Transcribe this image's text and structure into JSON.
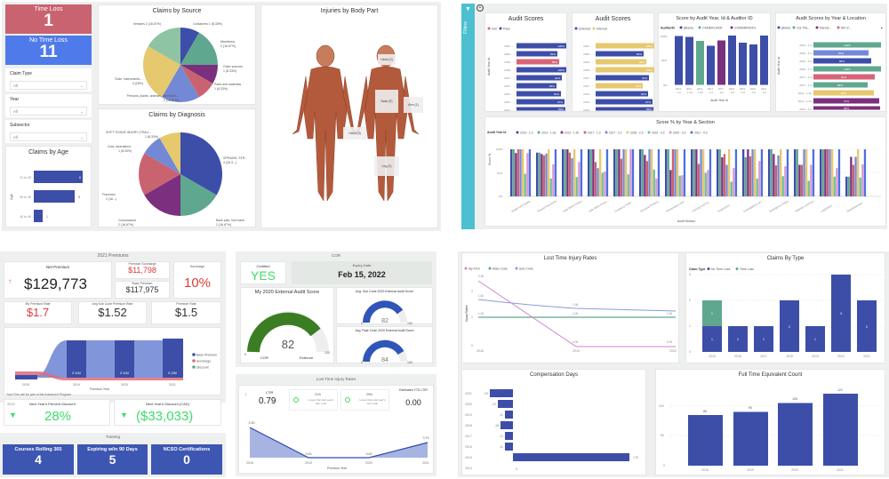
{
  "q1": {
    "time_loss": {
      "label": "Time Loss",
      "value": "1"
    },
    "no_time_loss": {
      "label": "No Time Loss",
      "value": "11"
    },
    "slicers": [
      {
        "label": "Claim Type",
        "value": "All"
      },
      {
        "label": "Year",
        "value": "All"
      },
      {
        "label": "Subsector",
        "value": "All"
      }
    ],
    "claims_by_age": {
      "title": "Claims by Age",
      "axis": "Age"
    },
    "claims_by_source": {
      "title": "Claims by Source"
    },
    "claims_by_diagnosis": {
      "title": "Claims by Diagnosis"
    },
    "body": {
      "title": "Injuries by Body Part",
      "labels": [
        "Head (2)",
        "Back (5)",
        "Arm (1)",
        "Hand (3)",
        "Leg (3)"
      ]
    }
  },
  "q2": {
    "filters_label": "Filters",
    "audit_scores_1": {
      "title": "Audit Scores",
      "legend": [
        "Fail",
        "Pass"
      ],
      "ylabel": "Audit Year Id"
    },
    "audit_scores_2": {
      "title": "Audit Scores",
      "legend": [
        "External",
        "Internal"
      ]
    },
    "score_by_auditor": {
      "title": "Score by Audit Year, Id & Auditor ID",
      "legend_title": "AuditorID",
      "legend": [
        "(Blank)",
        "CAMERL0000",
        "GOMANRO001"
      ],
      "xlabel": "Audit Year Id"
    },
    "scores_by_location": {
      "title": "Audit Scores by Year & Location",
      "legend": [
        "(Blank)",
        "123 This...",
        "Marsde...",
        "RM of ..."
      ],
      "ylabel": "Audit Year Id"
    },
    "score_by_section": {
      "title": "Score % by Year & Section",
      "legend_title": "Audit Year Id",
      "ylabel": "Score %",
      "xlabel": "Audit Section"
    }
  },
  "q3": {
    "premiums": {
      "title": "2021 Premiums",
      "net_premium": {
        "label": "Net Premium",
        "value": "$129,773"
      },
      "premium_surcharge": {
        "label": "Premium Surcharge",
        "value": "$11,798"
      },
      "base_premium": {
        "label": "Base Premium",
        "value": "$117,975"
      },
      "surcharge": {
        "label": "Surcharge",
        "value": "10%"
      },
      "my_rate": {
        "label": "My Premium Rate",
        "value": "$1.7"
      },
      "avg_sub_rate": {
        "label": "Avg Sub Code Premium Rate",
        "value": "$1.52"
      },
      "premium_rate": {
        "label": "Premium Rate",
        "value": "$1.5"
      },
      "ribbon_xlabel": "Premium Year",
      "legend": [
        "Base Premium",
        "Surcharge",
        "Discount"
      ],
      "note": "Your Firm will be part of the Advanced Program",
      "next_pct": {
        "year": "2022",
        "label": "Next Year's Percent Discount",
        "value": "28%"
      },
      "next_cad": {
        "label": "Next Year's Discount (CAD)",
        "value": "($33,033)"
      }
    },
    "training": {
      "title": "Training",
      "tiles": [
        {
          "label": "Courses Rolling 365",
          "value": "4"
        },
        {
          "label": "Expiring w/in 90 Days",
          "value": "5"
        },
        {
          "label": "NCSO Certifications",
          "value": "0"
        }
      ]
    },
    "cor": {
      "title": "COR",
      "certified": {
        "label": "Certified",
        "value": "YES"
      },
      "expiry": {
        "label": "Expiry Date",
        "value": "Feb 15, 2022"
      },
      "my_score": {
        "title": "My 2020 External Audit Score",
        "value": "82",
        "min": "0",
        "max": "100",
        "left": "COR",
        "right": "External"
      },
      "sub_score": {
        "title": "Avg. Sub Code 2020 External Audit Score",
        "value": "82",
        "min": "0",
        "max": "100"
      },
      "rate_score": {
        "title": "Avg. Rate Code 2020 External Audit Score",
        "value": "84",
        "min": "0",
        "max": "100"
      }
    },
    "ltir": {
      "title": "Lost Time Injury Rates",
      "ltir_label": "LTIR",
      "ltir_value": "0.79",
      "card1": {
        "pct": "21%",
        "text": "Lower than last year's rate code"
      },
      "card2": {
        "pct": "29%",
        "text": "Lower than last year's sub code"
      },
      "est_label": "Estimated YTD LTIR",
      "est_value": "0.00",
      "xlabel": "Premium Year"
    }
  },
  "q4": {
    "ltir_chart": {
      "title": "Lost Time Injury Rates",
      "legend": [
        "My Firm",
        "Rate Code",
        "Sub Code"
      ],
      "ylabel": "Injury Rates"
    },
    "claims_by_type": {
      "title": "Claims By Type",
      "legend_title": "Claim Type",
      "legend": [
        "No Time Loss",
        "Time Loss"
      ]
    },
    "comp_days": {
      "title": "Compensation Days"
    },
    "fte": {
      "title": "Full Time Equivalent Count"
    }
  },
  "chart_data": [
    {
      "id": "claims_by_age",
      "type": "bar",
      "orientation": "horizontal",
      "title": "Claims by Age",
      "categories": [
        "21 to 29",
        "30 to 39",
        "40 to 49"
      ],
      "values": [
        6,
        5,
        1
      ]
    },
    {
      "id": "claims_by_source",
      "type": "pie",
      "title": "Claims by Source",
      "labels": [
        "Containers",
        "Machinery",
        "Other sources",
        "Parts and materials",
        "Persons, plants, animals, and miner...",
        "Tools, instruments,...",
        "Vehicles"
      ],
      "values": [
        1,
        2,
        1,
        1,
        2,
        3,
        2
      ],
      "pct_labels": [
        "1 (8.33%)",
        "2 (16.67%)",
        "1 (8.33%)",
        "1 (8.33%)",
        "2 (16.67%)",
        "3 (25%)",
        "2 (16.67%)"
      ],
      "colors": [
        "#3d4ea8",
        "#5fa88f",
        "#7a2f7f",
        "#c9636f",
        "#7389d6",
        "#e6c86e",
        "#8ec3a3"
      ]
    },
    {
      "id": "claims_by_diagnosis",
      "type": "pie",
      "title": "Claims by Diagnosis",
      "labels": [
        "SPRAINS, STR...",
        "Back pain, hurt back",
        "Concussions",
        "Fractures",
        "Cuts, lacerations",
        "SOFT TISSUE INJURY (TRAU..."
      ],
      "values": [
        4,
        2,
        2,
        2,
        1,
        1
      ],
      "pct_labels": [
        "4 (33.3...)",
        "2 (16.67%)",
        "2 (16.67%)",
        "2 (16...)",
        "1 (8.33%)",
        "1 (8.33%)"
      ],
      "colors": [
        "#3d4ea8",
        "#5fa88f",
        "#7a2f7f",
        "#c9636f",
        "#7389d6",
        "#e6c86e"
      ]
    },
    {
      "id": "audit_scores_pass_fail",
      "type": "bar",
      "orientation": "horizontal",
      "title": "Audit Scores",
      "categories": [
        "2021 - ...",
        "2020 - ...",
        "2019 - ...",
        "2018 - ...",
        "2017 - ...",
        "2017 - ...",
        "2013 - ...",
        "2013 - ...",
        "2013 - ..."
      ],
      "values": [
        100,
        82,
        86,
        100,
        91,
        80,
        90,
        97,
        99
      ],
      "series_by_bar": [
        "Pass",
        "Pass",
        "Fail",
        "Pass",
        "Pass",
        "Pass",
        "Pass",
        "Pass",
        "Pass"
      ]
    },
    {
      "id": "audit_scores_ext_int",
      "type": "bar",
      "orientation": "horizontal",
      "title": "Audit Scores",
      "categories": [
        "2021 - ...",
        "2020 - ...",
        "2019 - ...",
        "2018 - ...",
        "2017 - ...",
        "2017 - ...",
        "2013 - ...",
        "2013 - ...",
        "2013 - ..."
      ],
      "values": [
        100,
        82,
        86,
        100,
        91,
        80,
        90,
        97,
        99
      ],
      "series_by_bar": [
        "Internal",
        "External",
        "Internal",
        "Internal",
        "External",
        "Internal",
        "External",
        "External",
        "External"
      ]
    },
    {
      "id": "score_by_auditor",
      "type": "bar",
      "title": "Score by Audit Year, Id & Auditor ID",
      "categories": [
        "2013 - 1-2",
        "2013 - 1-2a",
        "2013 - 1-2b",
        "2017 - 1-3",
        "2017 - 2-2",
        "2018 - 2-3",
        "2019 - 3-3",
        "2020 - 3-2",
        "2021 - 4-3"
      ],
      "values": [
        99,
        97,
        90,
        80,
        91,
        100,
        86,
        82,
        100
      ],
      "series_by_bar": [
        "(Blank)",
        "(Blank)",
        "CAMERL0000",
        "(Blank)",
        "GOMANRO001",
        "(Blank)",
        "(Blank)",
        "(Blank)",
        "(Blank)"
      ],
      "yticks": [
        "0%",
        "50%",
        "100%"
      ],
      "xlabel": "Audit Year Id"
    },
    {
      "id": "scores_by_location",
      "type": "bar",
      "orientation": "horizontal",
      "title": "Audit Scores by Year & Location",
      "categories": [
        "2021 - 4-3",
        "2020 - 3-2",
        "2019 - 3-3",
        "2018 - 2-3",
        "2017 - 2-2",
        "2017 - 1-3",
        "2013 - 1-2b",
        "2013 - 1-2a",
        "2013 - 1-2"
      ],
      "values": [
        100,
        82,
        86,
        100,
        91,
        80,
        90,
        97,
        99
      ],
      "colors": [
        "#5fa88f",
        "#7389d6",
        "#3d4ea8",
        "#5fa88f",
        "#c9636f",
        "#5fa88f",
        "#e6c86e",
        "#7a2f7f",
        "#7a2f7f"
      ]
    },
    {
      "id": "score_by_section",
      "type": "bar",
      "title": "Score % by Year & Section",
      "categories": [
        "Health and Safety ...",
        "Hazard Assessme...",
        "Safe Work Practic...",
        "Safe Work Proce...",
        "Company Rules",
        "Personal Protecti...",
        "Preventative Mai...",
        "Training and Co...",
        "Inspections",
        "Investigations an...",
        "Emergency Prepa...",
        "Statistics and Rec...",
        "Legislation",
        "Supplementary"
      ],
      "series": [
        {
          "name": "2013 - 1-2",
          "values": [
            100,
            93,
            100,
            100,
            100,
            100,
            100,
            100,
            100,
            100,
            100,
            100,
            100,
            42
          ]
        },
        {
          "name": "2013 - 1-2a",
          "values": [
            100,
            93,
            100,
            100,
            100,
            100,
            100,
            100,
            100,
            83,
            100,
            100,
            100,
            42
          ]
        },
        {
          "name": "2013 - 1-2b",
          "values": [
            92,
            90,
            100,
            100,
            100,
            88,
            56,
            100,
            83,
            100,
            90,
            67,
            100,
            84
          ]
        },
        {
          "name": "2017 - 1-3",
          "values": [
            100,
            87,
            93,
            73,
            80,
            75,
            100,
            69,
            90,
            85,
            66,
            67,
            100,
            67
          ]
        },
        {
          "name": "2017 - 2-2",
          "values": [
            100,
            91,
            81,
            60,
            100,
            100,
            100,
            100,
            67,
            100,
            87,
            100,
            100,
            84
          ]
        },
        {
          "name": "2018 - 2-3",
          "values": [
            100,
            100,
            100,
            100,
            100,
            100,
            100,
            100,
            100,
            100,
            100,
            100,
            100,
            100
          ]
        },
        {
          "name": "2019 - 3-3",
          "values": [
            48,
            38,
            41,
            50,
            47,
            57,
            44,
            50,
            31,
            38,
            43,
            33,
            42,
            40
          ]
        },
        {
          "name": "2020 - 3-2",
          "values": [
            92,
            68,
            73,
            53,
            100,
            38,
            45,
            56,
            60,
            75,
            64,
            67,
            60,
            68
          ]
        },
        {
          "name": "2021 - 4-3",
          "values": [
            100,
            100,
            100,
            100,
            100,
            100,
            100,
            100,
            100,
            100,
            100,
            100,
            100,
            100
          ]
        }
      ],
      "colors": [
        "#3d4ea8",
        "#5fa88f",
        "#7a2f7f",
        "#c9636f",
        "#7389d6",
        "#e6c86e",
        "#6fbf9a",
        "#d79ad1",
        "#4f6fe0"
      ],
      "yticks": [
        "0%",
        "50%",
        "100%"
      ],
      "ylabel": "Score %",
      "xlabel": "Audit Section"
    },
    {
      "id": "premium_ribbon",
      "type": "area",
      "title": "2021 Premiums",
      "x": [
        "2018",
        "2019",
        "2020",
        "2021"
      ],
      "series": [
        {
          "name": "Base Premium",
          "values": [
            0.01,
            0.11,
            0.11,
            0.12
          ],
          "labels": [
            "",
            "0.11M",
            "0.11M",
            "0.12M"
          ]
        },
        {
          "name": "Surcharge",
          "values": [
            0.01,
            0.01,
            0.01,
            0.01
          ]
        },
        {
          "name": "Discount",
          "values": [
            0,
            0,
            0,
            0
          ]
        }
      ],
      "xlabel": "Premium Year"
    },
    {
      "id": "ltir_small",
      "type": "area",
      "title": "Lost Time Injury Rates",
      "x": [
        "2018",
        "2019",
        "2020",
        "2021"
      ],
      "values": [
        2.3,
        0.0,
        0.0,
        0.79
      ],
      "labels": [
        "2.30",
        "0.00",
        "0.00",
        "0.79"
      ],
      "xlabel": "Premium Year"
    },
    {
      "id": "ltir_lines",
      "type": "line",
      "title": "Lost Time Injury Rates",
      "x": [
        "2018",
        "2019",
        "2020"
      ],
      "series": [
        {
          "name": "My Firm",
          "values": [
            2.3,
            0.0,
            0.0
          ],
          "labels": [
            "2.30",
            "0.00",
            "0.00"
          ]
        },
        {
          "name": "Rate Code",
          "values": [
            1.0,
            1.0,
            1.0
          ],
          "labels": [
            "1.00",
            "1.00",
            "1.00"
          ]
        },
        {
          "name": "Sub Code",
          "values": [
            1.62,
            1.36,
            1.28
          ],
          "labels": [
            "1.62",
            "1.36",
            ""
          ]
        }
      ],
      "ylabel": "Injury Rates",
      "yticks": [
        0,
        1,
        2
      ]
    },
    {
      "id": "claims_by_type",
      "type": "bar",
      "stacked": true,
      "title": "Claims By Type",
      "categories": [
        "2015",
        "2016",
        "2017",
        "2018",
        "2019",
        "2020",
        "2021"
      ],
      "series": [
        {
          "name": "No Time Loss",
          "values": [
            1,
            1,
            1,
            2,
            1,
            3,
            2
          ]
        },
        {
          "name": "Time Loss",
          "values": [
            1,
            0,
            0,
            0,
            0,
            0,
            0
          ]
        }
      ],
      "yticks": [
        0,
        1,
        2,
        3
      ]
    },
    {
      "id": "comp_days",
      "type": "bar",
      "orientation": "horizontal",
      "title": "Compensation Days",
      "categories": [
        "2021",
        "2020",
        "2019",
        "2018",
        "2017",
        "2016",
        "2015",
        "2014"
      ],
      "values": [
        -33,
        -22,
        -11,
        -18,
        -11,
        -11,
        175,
        0
      ]
    },
    {
      "id": "fte",
      "type": "bar",
      "title": "Full Time Equivalent Count",
      "categories": [
        "2018",
        "2019",
        "2020",
        "2021"
      ],
      "values": [
        85,
        90,
        105,
        121
      ],
      "yticks": [
        0,
        50,
        100
      ]
    }
  ]
}
